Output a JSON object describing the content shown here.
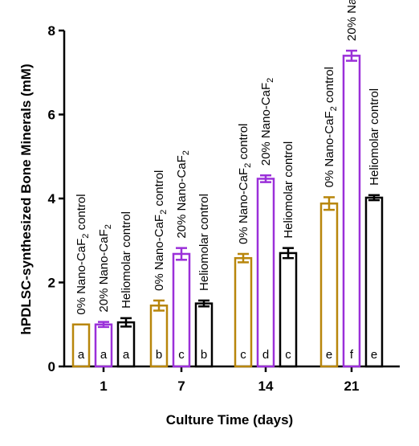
{
  "chart_data": {
    "type": "bar",
    "title": "",
    "xlabel": "Culture Time (days)",
    "ylabel": "hPDLSC-synthesized Bone Minerals (mM)",
    "ylim": [
      0,
      8
    ],
    "yticks": [
      0,
      2,
      4,
      6,
      8
    ],
    "categories": [
      "1",
      "7",
      "14",
      "21"
    ],
    "grid": false,
    "legend": "none",
    "series": [
      {
        "label_parts": [
          "0% Nano-CaF",
          "2",
          " control"
        ],
        "color": "#b8860b",
        "values": [
          1.0,
          1.45,
          2.58,
          3.88
        ],
        "errors": [
          0.0,
          0.12,
          0.1,
          0.15
        ],
        "letters": [
          "a",
          "b",
          "c",
          "e"
        ]
      },
      {
        "label_parts": [
          "20% Nano-CaF",
          "2",
          ""
        ],
        "color": "#9b30d9",
        "values": [
          1.0,
          2.68,
          4.47,
          7.4
        ],
        "errors": [
          0.06,
          0.14,
          0.08,
          0.12
        ],
        "letters": [
          "a",
          "c",
          "d",
          "f"
        ]
      },
      {
        "label_parts": [
          "Heliomolar control",
          "",
          ""
        ],
        "color": "#000000",
        "values": [
          1.05,
          1.5,
          2.7,
          4.02
        ],
        "errors": [
          0.1,
          0.07,
          0.12,
          0.06
        ],
        "letters": [
          "a",
          "b",
          "c",
          "e"
        ]
      }
    ]
  }
}
